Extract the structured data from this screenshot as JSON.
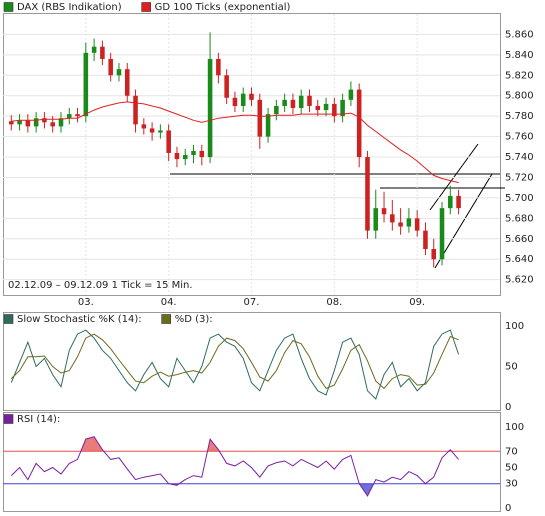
{
  "chart_data": [
    {
      "type": "candlestick",
      "series": [
        {
          "name": "DAX (RBS Indikation)",
          "color": "#1a8a1a",
          "down_color": "#cc2222",
          "open": [
            5.775,
            5.772,
            5.776,
            5.77,
            5.778,
            5.774,
            5.77,
            5.778,
            5.782,
            5.78,
            5.842,
            5.848,
            5.836,
            5.82,
            5.826,
            5.8,
            5.772,
            5.768,
            5.764,
            5.766,
            5.744,
            5.738,
            5.742,
            5.746,
            5.74,
            5.836,
            5.82,
            5.798,
            5.79,
            5.802,
            5.796,
            5.76,
            5.782,
            5.79,
            5.796,
            5.788,
            5.8,
            5.79,
            5.786,
            5.792,
            5.78,
            5.796,
            5.806,
            5.74,
            5.668,
            5.69,
            5.684,
            5.676,
            5.672,
            5.68,
            5.668,
            5.65,
            5.64,
            5.69,
            5.702
          ],
          "high": [
            5.781,
            5.782,
            5.782,
            5.784,
            5.784,
            5.78,
            5.784,
            5.788,
            5.788,
            5.852,
            5.856,
            5.854,
            5.842,
            5.832,
            5.832,
            5.806,
            5.778,
            5.774,
            5.772,
            5.772,
            5.75,
            5.748,
            5.752,
            5.752,
            5.862,
            5.842,
            5.826,
            5.804,
            5.808,
            5.808,
            5.802,
            5.788,
            5.796,
            5.802,
            5.802,
            5.806,
            5.806,
            5.796,
            5.798,
            5.798,
            5.802,
            5.814,
            5.812,
            5.746,
            5.708,
            5.706,
            5.698,
            5.69,
            5.69,
            5.688,
            5.676,
            5.66,
            5.696,
            5.712,
            5.708
          ],
          "low": [
            5.766,
            5.766,
            5.764,
            5.764,
            5.768,
            5.764,
            5.764,
            5.772,
            5.774,
            5.774,
            5.834,
            5.83,
            5.814,
            5.814,
            5.794,
            5.764,
            5.762,
            5.756,
            5.758,
            5.736,
            5.73,
            5.732,
            5.734,
            5.732,
            5.734,
            5.812,
            5.792,
            5.784,
            5.784,
            5.79,
            5.748,
            5.754,
            5.776,
            5.784,
            5.782,
            5.782,
            5.784,
            5.78,
            5.78,
            5.774,
            5.774,
            5.79,
            5.73,
            5.66,
            5.66,
            5.676,
            5.668,
            5.664,
            5.666,
            5.662,
            5.644,
            5.632,
            5.634,
            5.684,
            5.684
          ],
          "close": [
            5.772,
            5.776,
            5.77,
            5.778,
            5.774,
            5.77,
            5.778,
            5.782,
            5.78,
            5.842,
            5.848,
            5.836,
            5.82,
            5.826,
            5.8,
            5.772,
            5.768,
            5.764,
            5.766,
            5.744,
            5.738,
            5.742,
            5.746,
            5.74,
            5.836,
            5.82,
            5.798,
            5.79,
            5.802,
            5.796,
            5.76,
            5.782,
            5.79,
            5.796,
            5.788,
            5.8,
            5.79,
            5.786,
            5.792,
            5.78,
            5.796,
            5.806,
            5.74,
            5.668,
            5.69,
            5.684,
            5.676,
            5.672,
            5.68,
            5.668,
            5.65,
            5.64,
            5.69,
            5.702,
            5.69
          ]
        },
        {
          "name": "GD 100 Ticks (exponential)",
          "color": "#e02020",
          "values": [
            5.775,
            5.776,
            5.776,
            5.776,
            5.777,
            5.777,
            5.777,
            5.778,
            5.778,
            5.782,
            5.786,
            5.789,
            5.791,
            5.793,
            5.794,
            5.793,
            5.792,
            5.79,
            5.788,
            5.785,
            5.782,
            5.779,
            5.776,
            5.774,
            5.776,
            5.778,
            5.779,
            5.78,
            5.781,
            5.781,
            5.78,
            5.78,
            5.781,
            5.781,
            5.781,
            5.782,
            5.782,
            5.782,
            5.782,
            5.782,
            5.782,
            5.783,
            5.779,
            5.771,
            5.765,
            5.759,
            5.753,
            5.747,
            5.742,
            5.736,
            5.729,
            5.722,
            5.719,
            5.717,
            5.715
          ]
        }
      ],
      "x": [
        1,
        2,
        3,
        4,
        5,
        6,
        7,
        8,
        9,
        10,
        11,
        12,
        13,
        14,
        15,
        16,
        17,
        18,
        19,
        20,
        21,
        22,
        23,
        24,
        25,
        26,
        27,
        28,
        29,
        30,
        31,
        32,
        33,
        34,
        35,
        36,
        37,
        38,
        39,
        40,
        41,
        42,
        43,
        44,
        45,
        46,
        47,
        48,
        49,
        50,
        51,
        52,
        53,
        54,
        55
      ],
      "xlim": [
        0,
        60
      ],
      "xticks": [
        {
          "value": 10,
          "label": "03."
        },
        {
          "value": 20,
          "label": "04."
        },
        {
          "value": 30,
          "label": "07."
        },
        {
          "value": 40,
          "label": "08."
        },
        {
          "value": 50,
          "label": "09."
        }
      ],
      "ylim": [
        5.605,
        5.88
      ],
      "yticks": [
        {
          "value": 5.62,
          "label": "5.620"
        },
        {
          "value": 5.64,
          "label": "5.640"
        },
        {
          "value": 5.66,
          "label": "5.660"
        },
        {
          "value": 5.68,
          "label": "5.680"
        },
        {
          "value": 5.7,
          "label": "5.700"
        },
        {
          "value": 5.72,
          "label": "5.720"
        },
        {
          "value": 5.74,
          "label": "5.740"
        },
        {
          "value": 5.76,
          "label": "5.760"
        },
        {
          "value": 5.78,
          "label": "5.780"
        },
        {
          "value": 5.8,
          "label": "5.800"
        },
        {
          "value": 5.82,
          "label": "5.820"
        },
        {
          "value": 5.84,
          "label": "5.840"
        },
        {
          "value": 5.86,
          "label": "5.860"
        }
      ],
      "annotation": "02.12.09 – 09.12.09  1 Tick = 15 Min.",
      "grid": true
    },
    {
      "type": "line",
      "series": [
        {
          "name": "Slow Stochastic %K (14):",
          "color": "#2e6b5e",
          "values": [
            30,
            55,
            80,
            50,
            60,
            40,
            25,
            70,
            90,
            95,
            85,
            70,
            60,
            45,
            30,
            20,
            40,
            55,
            35,
            25,
            60,
            45,
            30,
            50,
            85,
            90,
            80,
            75,
            60,
            30,
            20,
            45,
            70,
            85,
            90,
            60,
            35,
            20,
            15,
            45,
            80,
            85,
            65,
            20,
            10,
            40,
            55,
            25,
            35,
            20,
            30,
            75,
            90,
            95,
            65
          ]
        },
        {
          "name": "%D (3):",
          "color": "#6b6b1e",
          "values": [
            35,
            45,
            62,
            62,
            63,
            50,
            42,
            45,
            62,
            85,
            90,
            83,
            72,
            58,
            45,
            32,
            30,
            38,
            43,
            38,
            40,
            43,
            45,
            42,
            55,
            75,
            85,
            82,
            72,
            55,
            37,
            32,
            45,
            67,
            82,
            78,
            62,
            38,
            23,
            27,
            47,
            70,
            77,
            57,
            32,
            23,
            35,
            40,
            38,
            27,
            28,
            42,
            65,
            87,
            83
          ]
        }
      ],
      "x": [
        1,
        2,
        3,
        4,
        5,
        6,
        7,
        8,
        9,
        10,
        11,
        12,
        13,
        14,
        15,
        16,
        17,
        18,
        19,
        20,
        21,
        22,
        23,
        24,
        25,
        26,
        27,
        28,
        29,
        30,
        31,
        32,
        33,
        34,
        35,
        36,
        37,
        38,
        39,
        40,
        41,
        42,
        43,
        44,
        45,
        46,
        47,
        48,
        49,
        50,
        51,
        52,
        53,
        54,
        55
      ],
      "xlim": [
        0,
        60
      ],
      "ylim": [
        0,
        100
      ],
      "yticks": [
        0,
        50,
        100
      ]
    },
    {
      "type": "line",
      "series": [
        {
          "name": "RSI (14):",
          "color": "#7a1fa2",
          "values": [
            40,
            50,
            35,
            55,
            45,
            50,
            42,
            55,
            60,
            85,
            88,
            72,
            60,
            62,
            48,
            35,
            38,
            40,
            42,
            30,
            28,
            35,
            40,
            38,
            85,
            72,
            55,
            52,
            58,
            50,
            38,
            52,
            56,
            58,
            52,
            60,
            55,
            50,
            58,
            48,
            60,
            65,
            30,
            15,
            35,
            32,
            38,
            35,
            45,
            40,
            30,
            38,
            62,
            72,
            60
          ]
        }
      ],
      "x": [
        1,
        2,
        3,
        4,
        5,
        6,
        7,
        8,
        9,
        10,
        11,
        12,
        13,
        14,
        15,
        16,
        17,
        18,
        19,
        20,
        21,
        22,
        23,
        24,
        25,
        26,
        27,
        28,
        29,
        30,
        31,
        32,
        33,
        34,
        35,
        36,
        37,
        38,
        39,
        40,
        41,
        42,
        43,
        44,
        45,
        46,
        47,
        48,
        49,
        50,
        51,
        52,
        53,
        54,
        55
      ],
      "xlim": [
        0,
        60
      ],
      "ylim": [
        0,
        100
      ],
      "yticks": [
        0,
        30,
        50,
        70,
        100
      ],
      "threshold_lines": [
        {
          "value": 70,
          "color": "#e05050"
        },
        {
          "value": 30,
          "color": "#4040d0"
        }
      ]
    }
  ]
}
